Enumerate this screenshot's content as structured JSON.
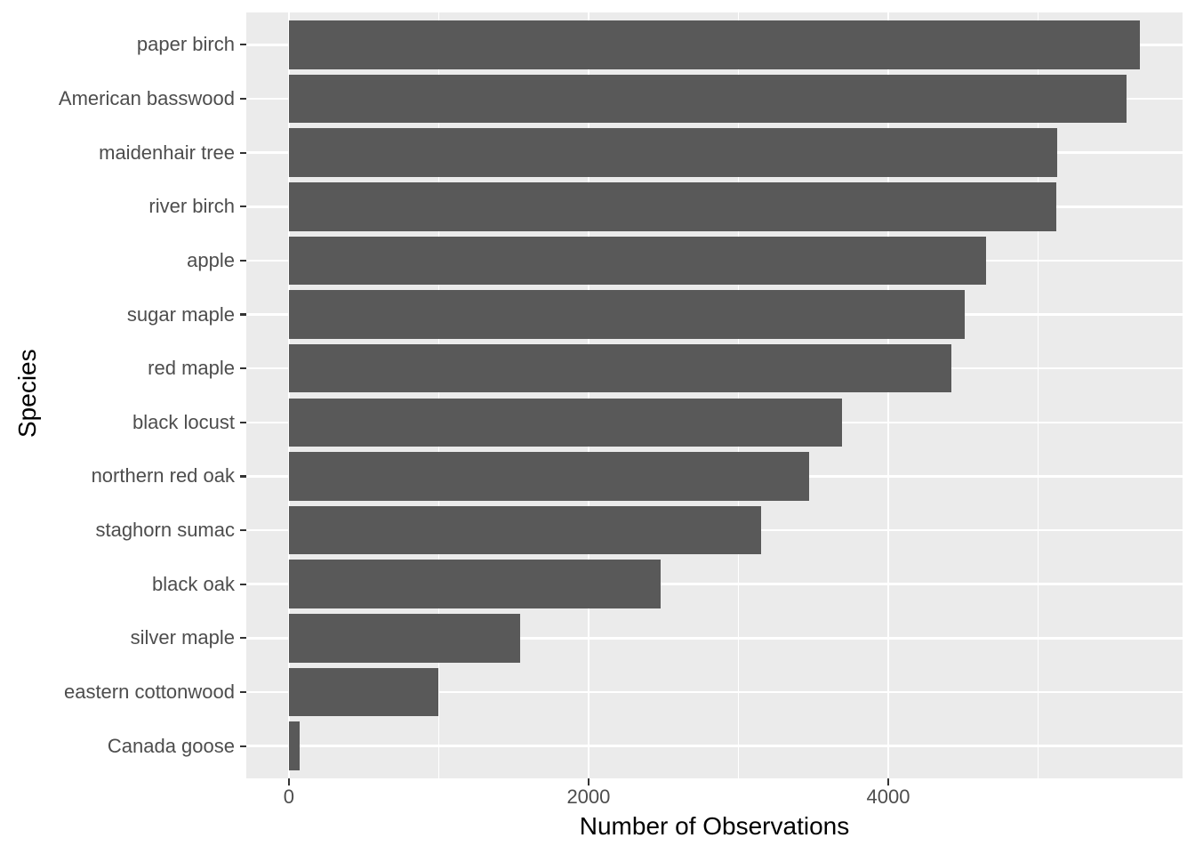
{
  "chart_data": {
    "type": "bar",
    "orientation": "horizontal",
    "title": "",
    "xlabel": "Number of Observations",
    "ylabel": "Species",
    "categories": [
      "paper birch",
      "American basswood",
      "maidenhair tree",
      "river birch",
      "apple",
      "sugar maple",
      "red maple",
      "black locust",
      "northern red oak",
      "staghorn sumac",
      "black oak",
      "silver maple",
      "eastern cottonwood",
      "Canada goose"
    ],
    "values": [
      5680,
      5590,
      5130,
      5120,
      4650,
      4510,
      4420,
      3690,
      3470,
      3150,
      2480,
      1545,
      1000,
      75
    ],
    "x_axis": {
      "tick_values": [
        0,
        2000,
        4000
      ],
      "tick_labels": [
        "0",
        "2000",
        "4000"
      ],
      "minor_gridlines": [
        1000,
        3000,
        5000
      ],
      "range": [
        -284,
        5964
      ]
    },
    "grid": true,
    "legend": false,
    "colors": {
      "bar_fill": "#595959",
      "panel_background": "#EBEBEB",
      "gridline": "#FFFFFF",
      "tick_mark": "#333333",
      "axis_text": "#4D4D4D",
      "axis_title": "#000000",
      "figure_background": "#FFFFFF"
    }
  }
}
